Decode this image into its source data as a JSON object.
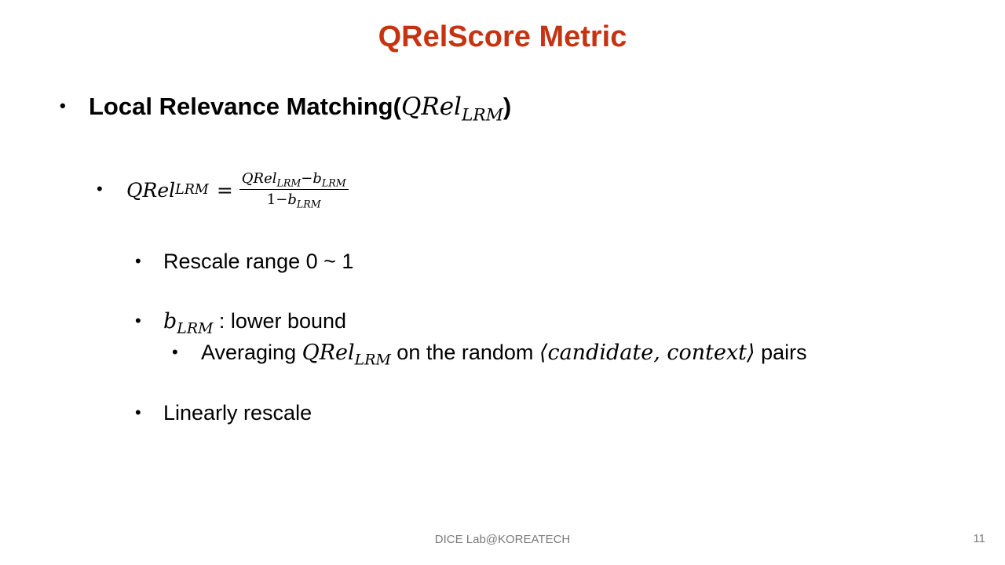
{
  "slide": {
    "title": "QRelScore Metric",
    "bullet_char": "•",
    "heading": {
      "text": "Local Relevance Matching(",
      "math_base": "QRel",
      "math_sub": "LRM",
      "close": ")"
    },
    "equation": {
      "lhs_base": "QRel",
      "lhs_sub": "LRM",
      "equals": "=",
      "num_base": "QRel",
      "num_sub": "LRM",
      "num_minus": "−",
      "num_b": "b",
      "num_b_sub": "LRM",
      "den_one": "1",
      "den_minus": "−",
      "den_b": "b",
      "den_b_sub": "LRM"
    },
    "points": {
      "rescale_range": "Rescale range 0 ~ 1",
      "lower_bound_var": "b",
      "lower_bound_sub": "LRM",
      "lower_bound_text": " : lower bound",
      "averaging_pre": "Averaging ",
      "averaging_base": "QRel",
      "averaging_sub": "LRM",
      "averaging_mid": " on the random ",
      "averaging_pair": "⟨candidate, context⟩",
      "averaging_post": " pairs",
      "linear": "Linearly rescale"
    }
  },
  "footer": {
    "label": "DICE Lab@KOREATECH",
    "page_number": "11"
  }
}
